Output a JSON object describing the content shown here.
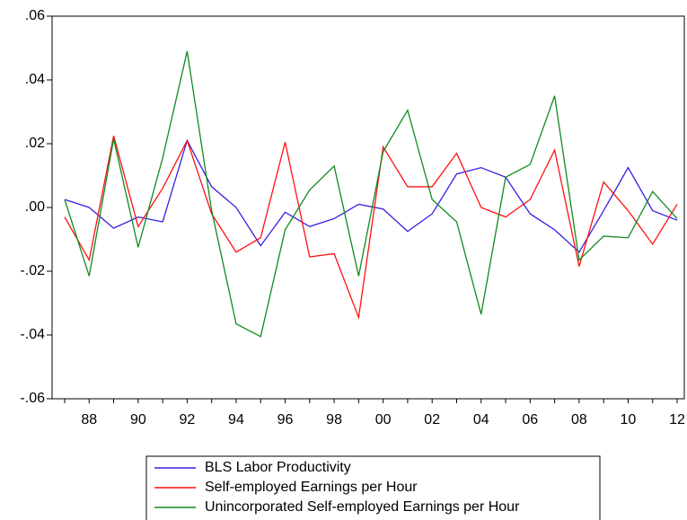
{
  "chart_data": {
    "type": "line",
    "categories": [
      null,
      "88",
      null,
      "90",
      null,
      "92",
      null,
      "94",
      null,
      "96",
      null,
      "98",
      null,
      "00",
      null,
      "02",
      null,
      "04",
      null,
      "06",
      null,
      "08",
      null,
      "10",
      null,
      "12"
    ],
    "series": [
      {
        "name": "BLS Labor Productivity",
        "color": "#3a1fe0",
        "values": [
          0.0025,
          0.0,
          -0.0065,
          -0.003,
          -0.0045,
          0.021,
          0.0065,
          0.0,
          -0.012,
          -0.0015,
          -0.006,
          -0.0035,
          0.001,
          -0.0005,
          -0.0075,
          -0.002,
          0.0105,
          0.0125,
          0.0095,
          -0.002,
          -0.007,
          -0.014,
          -0.001,
          0.0125,
          -0.001,
          -0.004
        ]
      },
      {
        "name": "Self-employed Earnings per Hour",
        "color": "#ff1010",
        "values": [
          -0.003,
          -0.0165,
          0.0225,
          -0.006,
          0.006,
          0.021,
          -0.002,
          -0.014,
          -0.0095,
          0.0205,
          -0.0155,
          -0.0145,
          -0.0345,
          0.019,
          0.0065,
          0.0065,
          0.017,
          0.0,
          -0.003,
          0.0025,
          0.018,
          -0.0185,
          0.008,
          -0.001,
          -0.0115,
          0.001
        ]
      },
      {
        "name": "Unincorporated Self-employed Earnings per Hour",
        "color": "#108a20",
        "values": [
          0.0025,
          -0.0215,
          0.0215,
          -0.0125,
          0.0155,
          0.049,
          -0.001,
          -0.0365,
          -0.0405,
          -0.007,
          0.0055,
          0.013,
          -0.0215,
          0.0175,
          0.0305,
          0.0025,
          -0.0045,
          -0.0335,
          0.0095,
          0.0135,
          0.035,
          -0.0165,
          -0.009,
          -0.0095,
          0.005,
          -0.0035
        ]
      }
    ],
    "ylim": [
      -0.06,
      0.06
    ],
    "yticks": [
      {
        "value": -0.06,
        "label": "-.06"
      },
      {
        "value": -0.04,
        "label": "-.04"
      },
      {
        "value": -0.02,
        "label": "-.02"
      },
      {
        "value": 0.0,
        "label": ".00"
      },
      {
        "value": 0.02,
        "label": ".02"
      },
      {
        "value": 0.04,
        "label": ".04"
      },
      {
        "value": 0.06,
        "label": ".06"
      }
    ],
    "grid": false,
    "legend": "bottom"
  }
}
